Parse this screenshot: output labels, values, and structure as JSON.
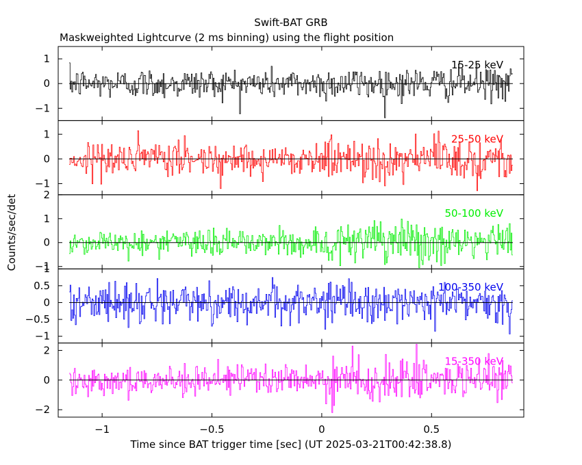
{
  "chart_data": {
    "type": "line",
    "title": "Swift-BAT GRB",
    "subtitle": "Maskweighted Lightcurve (2 ms binning) using the flight position",
    "xlabel": "Time since BAT trigger time [sec] (UT 2025-03-21T00:42:38.8)",
    "ylabel": "Counts/sec/det",
    "xlim": [
      -1.2,
      0.92
    ],
    "x_ticks": [
      -1,
      -0.5,
      0,
      0.5
    ],
    "x_tick_labels": [
      "−1",
      "−0.5",
      "0",
      "0.5"
    ],
    "data_range_x": [
      -1.15,
      0.87
    ],
    "binning_sec": 0.002,
    "grid": false,
    "zero_line": true,
    "panels": [
      {
        "name": "15-25 keV",
        "color": "#000000",
        "ylim": [
          -1.5,
          1.5
        ],
        "y_ticks": [
          -1,
          0,
          1
        ],
        "y_tick_labels": [
          "−1",
          "0",
          "1"
        ],
        "noise_amplitude_pre": 0.55,
        "noise_amplitude_post": 0.6
      },
      {
        "name": "25-50 keV",
        "color": "#ff0000",
        "ylim": [
          -1.45,
          1.55
        ],
        "y_ticks": [
          -1,
          0,
          1
        ],
        "y_tick_labels": [
          "−1",
          "0",
          "1"
        ],
        "noise_amplitude_pre": 0.6,
        "noise_amplitude_post": 0.8
      },
      {
        "name": "50-100 keV",
        "color": "#00ee00",
        "ylim": [
          -1.1,
          2.0
        ],
        "y_ticks": [
          -1,
          0,
          1,
          2
        ],
        "y_tick_labels": [
          "−1",
          "0",
          "1",
          "2"
        ],
        "noise_amplitude_pre": 0.5,
        "noise_amplitude_post": 0.8
      },
      {
        "name": "100-350 keV",
        "color": "#0000ee",
        "ylim": [
          -1.2,
          1.0
        ],
        "y_ticks": [
          -1,
          -0.5,
          0,
          0.5,
          1
        ],
        "y_tick_labels": [
          "−1",
          "−0.5",
          "0",
          "0.5",
          "1"
        ],
        "noise_amplitude_pre": 0.5,
        "noise_amplitude_post": 0.55
      },
      {
        "name": "15-350 keV",
        "color": "#ff00ff",
        "ylim": [
          -2.5,
          2.5
        ],
        "y_ticks": [
          -2,
          0,
          2
        ],
        "y_tick_labels": [
          "−2",
          "0",
          "2"
        ],
        "noise_amplitude_pre": 0.9,
        "noise_amplitude_post": 1.3
      }
    ]
  }
}
